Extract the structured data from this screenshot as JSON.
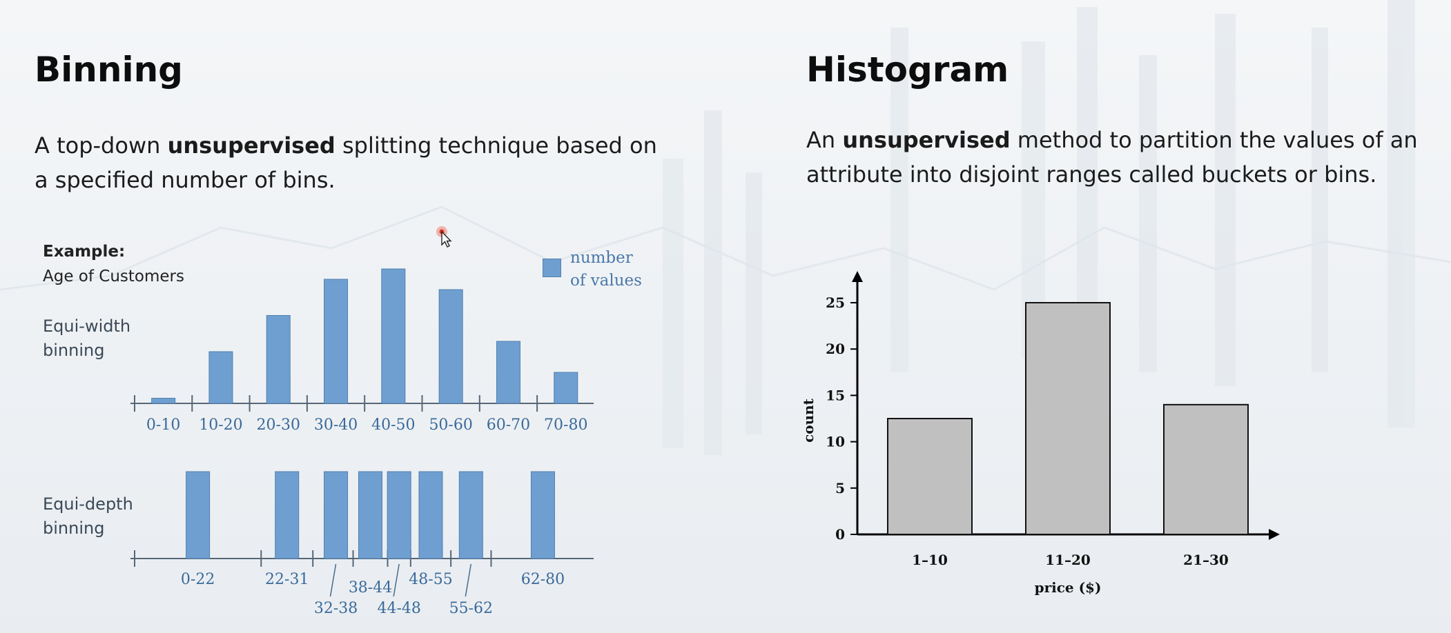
{
  "left": {
    "title": "Binning",
    "desc_before": "A top-down ",
    "desc_bold": "unsupervised",
    "desc_after": " splitting technique based on a specified number of bins.",
    "example_label": "Example:",
    "example_subject": "Age of Customers",
    "equi_width_label": "Equi-width binning",
    "equi_depth_label": "Equi-depth binning",
    "legend_label": "number of values",
    "legend_color": "#6f9fd0"
  },
  "right": {
    "title": "Histogram",
    "desc_before": "An ",
    "desc_bold": "unsupervised",
    "desc_after": " method to partition the values of an attribute into disjoint ranges called buckets or bins."
  },
  "chart_data": [
    {
      "type": "bar",
      "title": "Equi-width binning",
      "categories": [
        "0-10",
        "10-20",
        "20-30",
        "30-40",
        "40-50",
        "50-60",
        "60-70",
        "70-80"
      ],
      "values": [
        0.5,
        5,
        8.5,
        12,
        13,
        11,
        6,
        3
      ],
      "ylim": [
        0,
        14
      ],
      "series": [
        {
          "name": "number of values",
          "values": [
            0.5,
            5,
            8.5,
            12,
            13,
            11,
            6,
            3
          ]
        }
      ],
      "color": "#6f9fd0"
    },
    {
      "type": "bar",
      "title": "Equi-depth binning",
      "bins": [
        {
          "label": "0-22",
          "range": [
            0,
            22
          ]
        },
        {
          "label": "22-31",
          "range": [
            22,
            31
          ]
        },
        {
          "label": "32-38",
          "range": [
            32,
            38
          ]
        },
        {
          "label": "38-44",
          "range": [
            38,
            44
          ]
        },
        {
          "label": "44-48",
          "range": [
            44,
            48
          ]
        },
        {
          "label": "48-55",
          "range": [
            48,
            55
          ]
        },
        {
          "label": "55-62",
          "range": [
            55,
            62
          ]
        },
        {
          "label": "62-80",
          "range": [
            62,
            80
          ]
        }
      ],
      "values": [
        1,
        1,
        1,
        1,
        1,
        1,
        1,
        1
      ],
      "color": "#6f9fd0"
    },
    {
      "type": "bar",
      "categories": [
        "1–10",
        "11–20",
        "21–30"
      ],
      "values": [
        12.5,
        25,
        14
      ],
      "xlabel": "price ($)",
      "ylabel": "count",
      "ylim": [
        0,
        25
      ],
      "yticks": [
        0,
        5,
        10,
        15,
        20,
        25
      ],
      "color": "#c0c0c0"
    }
  ]
}
